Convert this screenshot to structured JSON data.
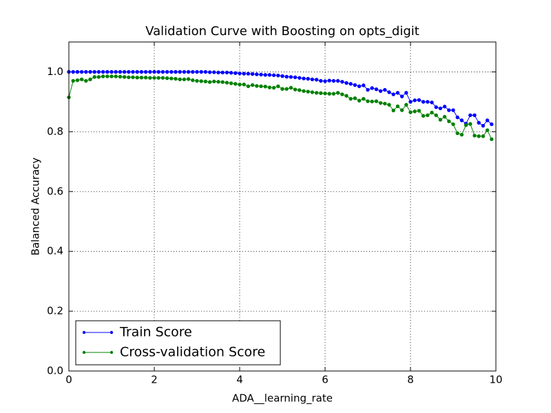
{
  "chart_data": {
    "type": "line",
    "title": "Validation Curve with Boosting on opts_digit",
    "x_label": "ADA__learning_rate",
    "y_label": "Balanced Accuracy",
    "x": [
      0,
      0.1,
      0.2,
      0.3,
      0.4,
      0.5,
      0.6,
      0.7,
      0.8,
      0.9,
      1,
      1.1,
      1.2,
      1.3,
      1.4,
      1.5,
      1.6,
      1.7,
      1.8,
      1.9,
      2,
      2.1,
      2.2,
      2.3,
      2.4,
      2.5,
      2.6,
      2.7,
      2.8,
      2.9,
      3,
      3.1,
      3.2,
      3.3,
      3.4,
      3.5,
      3.6,
      3.7,
      3.8,
      3.9,
      4,
      4.1,
      4.2,
      4.3,
      4.4,
      4.5,
      4.6,
      4.7,
      4.8,
      4.9,
      5,
      5.1,
      5.2,
      5.3,
      5.4,
      5.5,
      5.6,
      5.7,
      5.8,
      5.9,
      6,
      6.1,
      6.2,
      6.3,
      6.4,
      6.5,
      6.6,
      6.7,
      6.8,
      6.9,
      7,
      7.1,
      7.2,
      7.3,
      7.4,
      7.5,
      7.6,
      7.7,
      7.8,
      7.9,
      8,
      8.1,
      8.2,
      8.3,
      8.4,
      8.5,
      8.6,
      8.7,
      8.8,
      8.9,
      9,
      9.1,
      9.2,
      9.3,
      9.4,
      9.5,
      9.6,
      9.7,
      9.8,
      9.9
    ],
    "series": [
      {
        "name": "Train Score",
        "color": "#0000ff",
        "values": [
          1,
          1,
          1,
          1,
          1,
          1,
          1,
          1,
          1,
          1,
          1,
          1,
          1,
          1,
          1,
          1,
          1,
          1,
          1,
          1,
          1,
          1,
          1,
          1,
          1,
          1,
          1,
          1,
          1,
          1,
          1,
          1,
          1,
          0.999,
          0.999,
          0.998,
          0.998,
          0.998,
          0.997,
          0.996,
          0.995,
          0.994,
          0.994,
          0.993,
          0.992,
          0.991,
          0.99,
          0.99,
          0.989,
          0.988,
          0.986,
          0.984,
          0.983,
          0.982,
          0.98,
          0.978,
          0.977,
          0.975,
          0.974,
          0.97,
          0.969,
          0.971,
          0.97,
          0.97,
          0.967,
          0.963,
          0.96,
          0.956,
          0.952,
          0.955,
          0.94,
          0.946,
          0.942,
          0.936,
          0.94,
          0.932,
          0.925,
          0.93,
          0.918,
          0.93,
          0.9,
          0.905,
          0.906,
          0.9,
          0.9,
          0.898,
          0.882,
          0.878,
          0.884,
          0.872,
          0.872,
          0.848,
          0.838,
          0.827,
          0.855,
          0.855,
          0.83,
          0.82,
          0.838,
          0.825
        ]
      },
      {
        "name": "Cross-validation Score",
        "color": "#008000",
        "values": [
          0.915,
          0.97,
          0.972,
          0.975,
          0.97,
          0.975,
          0.983,
          0.983,
          0.985,
          0.985,
          0.985,
          0.985,
          0.984,
          0.983,
          0.982,
          0.982,
          0.981,
          0.981,
          0.981,
          0.98,
          0.98,
          0.98,
          0.98,
          0.979,
          0.978,
          0.977,
          0.975,
          0.975,
          0.976,
          0.972,
          0.97,
          0.969,
          0.968,
          0.966,
          0.968,
          0.967,
          0.966,
          0.964,
          0.962,
          0.96,
          0.958,
          0.958,
          0.952,
          0.956,
          0.953,
          0.952,
          0.951,
          0.948,
          0.947,
          0.952,
          0.943,
          0.943,
          0.947,
          0.941,
          0.939,
          0.936,
          0.934,
          0.932,
          0.93,
          0.929,
          0.928,
          0.927,
          0.927,
          0.93,
          0.925,
          0.92,
          0.91,
          0.912,
          0.904,
          0.91,
          0.902,
          0.901,
          0.902,
          0.896,
          0.894,
          0.89,
          0.871,
          0.885,
          0.872,
          0.89,
          0.865,
          0.868,
          0.87,
          0.853,
          0.855,
          0.864,
          0.855,
          0.84,
          0.85,
          0.835,
          0.825,
          0.795,
          0.79,
          0.822,
          0.826,
          0.787,
          0.785,
          0.785,
          0.805,
          0.775
        ]
      }
    ],
    "xlim": [
      0,
      10
    ],
    "xticks": [
      0,
      2,
      4,
      6,
      8,
      10
    ],
    "ylim": [
      0,
      1.1
    ],
    "yticks": [
      {
        "value": 0,
        "label": "0.0"
      },
      0.2,
      0.4,
      0.6,
      0.8,
      {
        "value": 1,
        "label": "1.0"
      }
    ],
    "grid": true,
    "legend": "lower left"
  }
}
